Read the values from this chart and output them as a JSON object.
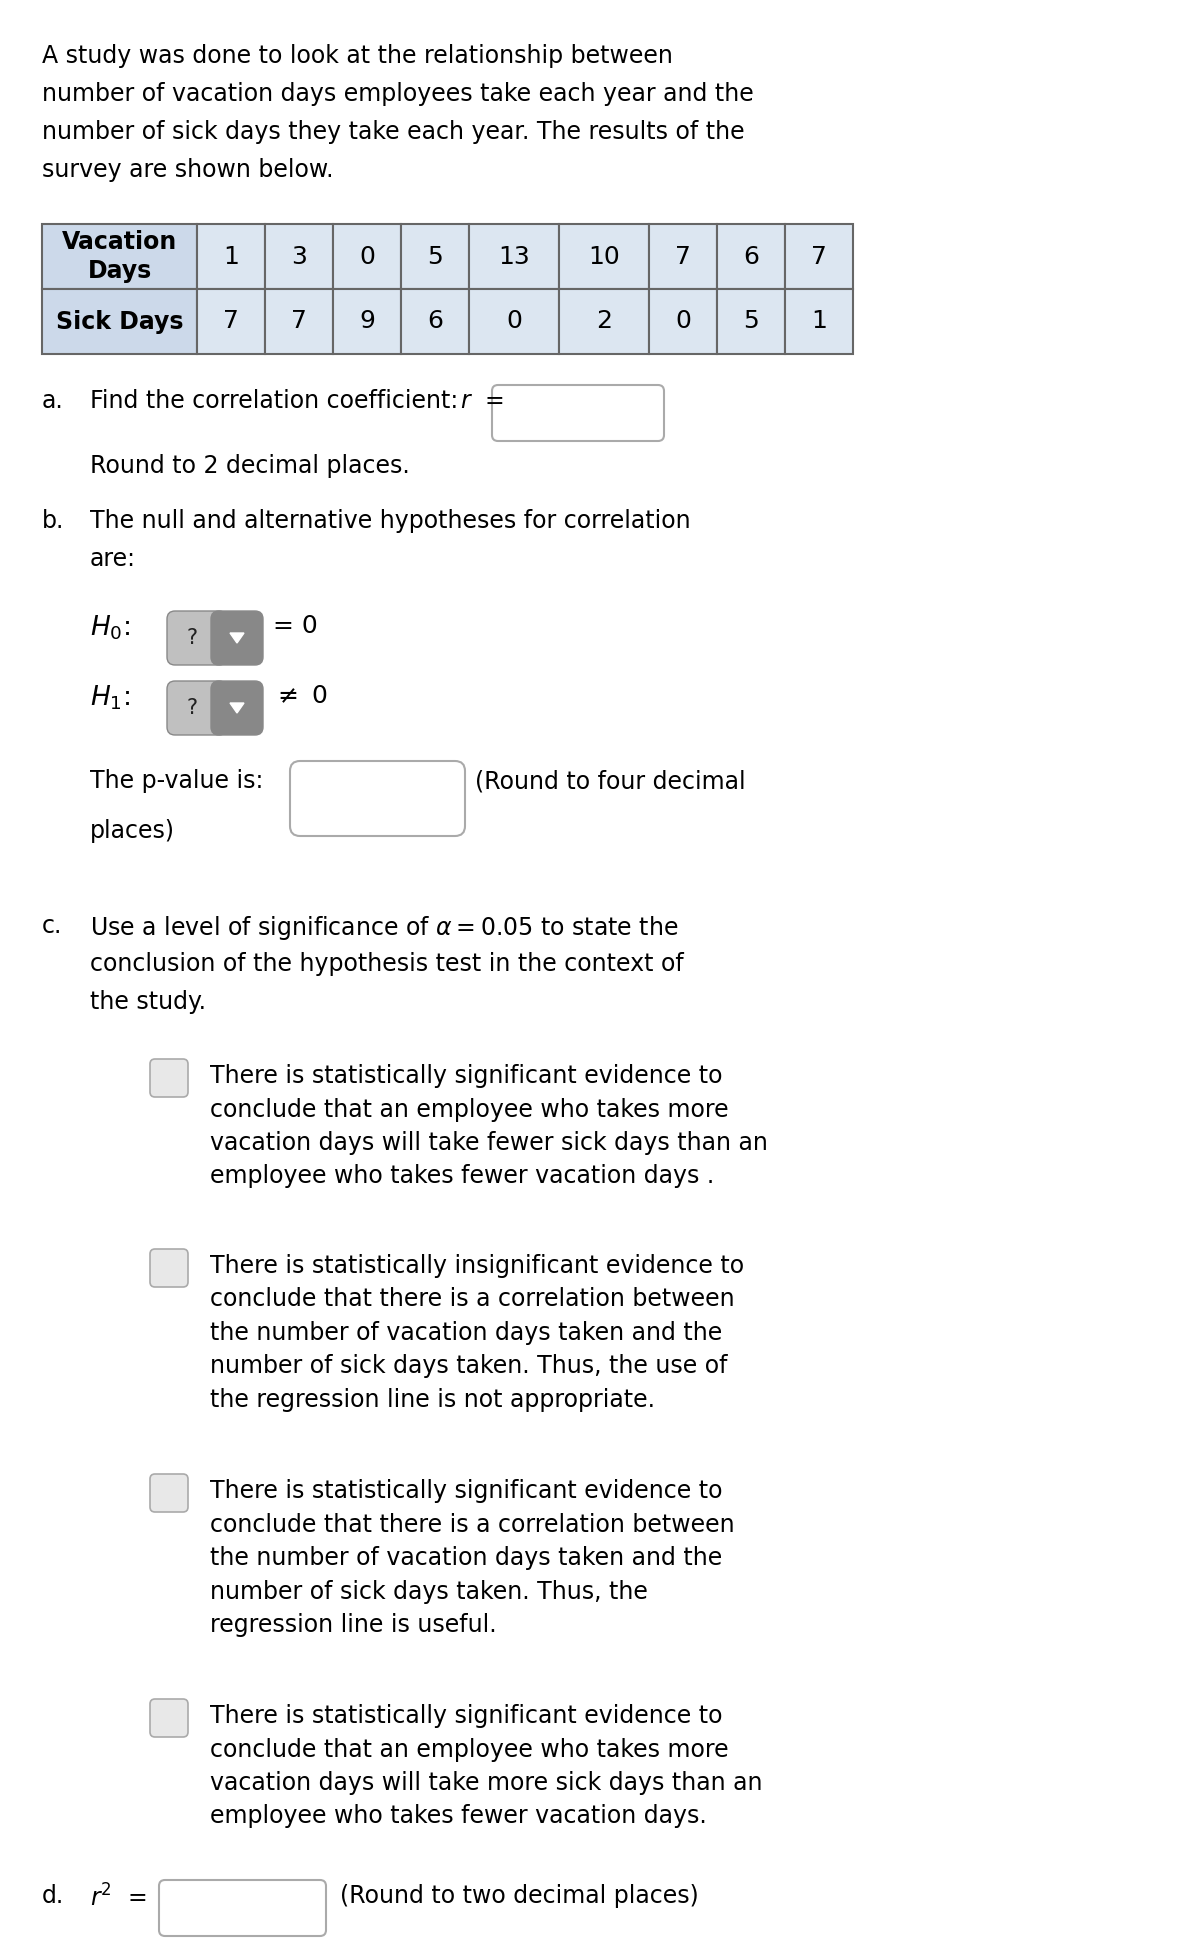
{
  "intro_text_lines": [
    "A study was done to look at the relationship between",
    "number of vacation days employees take each year and the",
    "number of sick days they take each year. The results of the",
    "survey are shown below."
  ],
  "vacation_days": [
    "1",
    "3",
    "0",
    "5",
    "13",
    "10",
    "7",
    "6",
    "7"
  ],
  "sick_days": [
    "7",
    "7",
    "9",
    "6",
    "0",
    "2",
    "0",
    "5",
    "1"
  ],
  "table_header_bg": "#ccd9ea",
  "table_data_bg": "#dce6f1",
  "bg_color": "#ffffff",
  "text_color": "#000000",
  "options": [
    "There is statistically significant evidence to\nconclude that an employee who takes more\nvacation days will take fewer sick days than an\nemployee who takes fewer vacation days .",
    "There is statistically insignificant evidence to\nconclude that there is a correlation between\nthe number of vacation days taken and the\nnumber of sick days taken. Thus, the use of\nthe regression line is not appropriate.",
    "There is statistically significant evidence to\nconclude that there is a correlation between\nthe number of vacation days taken and the\nnumber of sick days taken. Thus, the\nregression line is useful.",
    "There is statistically significant evidence to\nconclude that an employee who takes more\nvacation days will take more sick days than an\nemployee who takes fewer vacation days."
  ]
}
